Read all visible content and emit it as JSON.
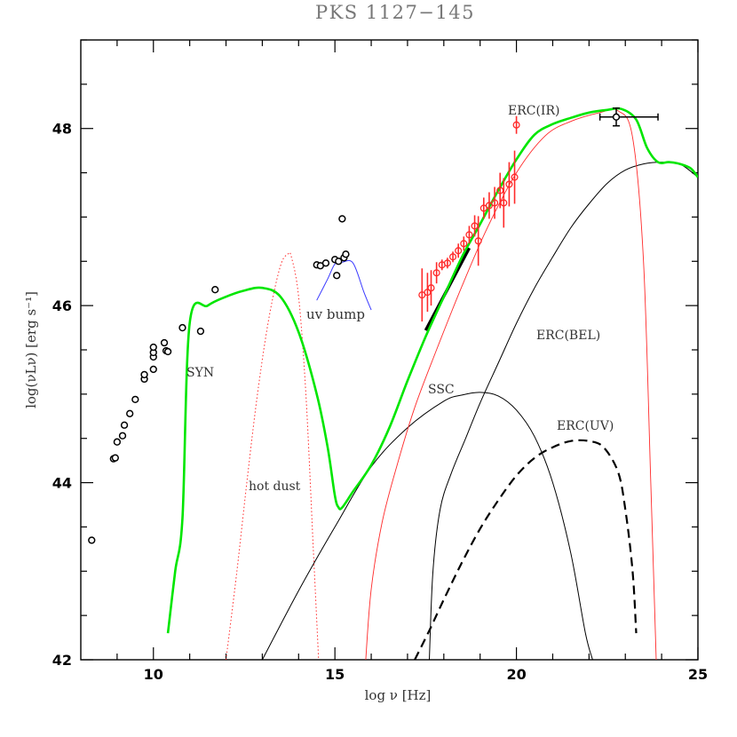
{
  "chart_data": {
    "type": "scatter",
    "title": "PKS 1127−145",
    "xlabel": "log ν [Hz]",
    "ylabel": "log(νLν) [erg s⁻¹]",
    "xlim": [
      8,
      25
    ],
    "ylim": [
      42,
      49
    ],
    "x_ticks": [
      10,
      15,
      20,
      25
    ],
    "y_ticks": [
      42,
      44,
      46,
      48
    ],
    "x_tick_labels": [
      "10",
      "15",
      "20",
      "25"
    ],
    "y_tick_labels": [
      "42",
      "44",
      "46",
      "48"
    ],
    "colors": {
      "green": "#00e600",
      "red": "#ff2a2a",
      "blue": "#3a3aff",
      "black": "#000000"
    },
    "annotations": {
      "syn": "SYN",
      "hot_dust": "hot dust",
      "uv_bump": "uv bump",
      "ssc": "SSC",
      "erc_bel": "ERC(BEL)",
      "erc_uv": "ERC(UV)",
      "erc_ir": "ERC(IR)"
    },
    "series": [
      {
        "name": "total",
        "color": "#00e600",
        "style": "solid",
        "x": [
          10.4,
          10.6,
          10.8,
          11.0,
          11.5,
          12.0,
          12.5,
          13.0,
          13.5,
          14.0,
          14.5,
          14.8,
          15.0,
          15.1,
          15.2,
          15.5,
          16.0,
          16.5,
          17.0,
          17.5,
          18.0,
          18.5,
          19.0,
          19.5,
          20.0,
          20.5,
          21.0,
          21.5,
          22.0,
          22.5,
          22.9,
          23.3,
          23.6,
          23.9,
          24.2,
          24.5,
          24.8,
          25.0
        ],
        "y": [
          42.3,
          43.0,
          43.6,
          45.8,
          46.0,
          46.1,
          46.17,
          46.2,
          46.1,
          45.7,
          45.0,
          44.4,
          43.85,
          43.72,
          43.72,
          43.9,
          44.2,
          44.62,
          45.15,
          45.65,
          46.1,
          46.55,
          46.92,
          47.3,
          47.65,
          47.93,
          48.05,
          48.12,
          48.18,
          48.21,
          48.22,
          48.1,
          47.78,
          47.62,
          47.62,
          47.6,
          47.55,
          47.45
        ]
      },
      {
        "name": "hot dust",
        "color": "#ff2a2a",
        "style": "dotted",
        "x": [
          12.0,
          12.3,
          12.6,
          12.9,
          13.2,
          13.5,
          13.7,
          13.8,
          14.0,
          14.2,
          14.4,
          14.55
        ],
        "y": [
          42.0,
          43.0,
          44.1,
          45.1,
          45.9,
          46.45,
          46.58,
          46.55,
          46.1,
          45.0,
          43.3,
          42.0
        ]
      },
      {
        "name": "uv bump",
        "color": "#3a3aff",
        "style": "solid",
        "x": [
          14.5,
          14.8,
          15.0,
          15.2,
          15.5,
          15.8,
          16.0
        ],
        "y": [
          46.06,
          46.3,
          46.47,
          46.49,
          46.48,
          46.15,
          45.95
        ]
      },
      {
        "name": "SSC",
        "color": "#000000",
        "style": "solid",
        "x": [
          13.0,
          14.0,
          15.0,
          16.0,
          17.0,
          18.0,
          18.5,
          19.0,
          19.5,
          20.0,
          20.5,
          21.0,
          21.5,
          21.9,
          22.1
        ],
        "y": [
          42.0,
          42.78,
          43.5,
          44.18,
          44.62,
          44.92,
          44.99,
          45.02,
          44.98,
          44.82,
          44.52,
          44.0,
          43.2,
          42.3,
          42.0
        ]
      },
      {
        "name": "ERC(BEL)",
        "color": "#000000",
        "style": "solid",
        "x": [
          17.6,
          17.7,
          17.9,
          18.2,
          18.6,
          19.0,
          19.5,
          20.0,
          20.5,
          21.0,
          21.5,
          22.0,
          22.5,
          23.0,
          23.5,
          24.0,
          24.5,
          25.0
        ],
        "y": [
          42.0,
          43.0,
          43.7,
          44.1,
          44.5,
          44.9,
          45.35,
          45.8,
          46.2,
          46.55,
          46.88,
          47.15,
          47.38,
          47.53,
          47.6,
          47.62,
          47.6,
          47.45
        ]
      },
      {
        "name": "ERC(UV)",
        "color": "#000000",
        "style": "dashed",
        "x": [
          17.2,
          17.6,
          18.0,
          18.5,
          19.0,
          19.5,
          20.0,
          20.5,
          21.0,
          21.5,
          22.0,
          22.4,
          22.8,
          23.0,
          23.2,
          23.3
        ],
        "y": [
          42.0,
          42.33,
          42.68,
          43.1,
          43.48,
          43.8,
          44.08,
          44.28,
          44.4,
          44.47,
          44.47,
          44.4,
          44.12,
          43.7,
          43.0,
          42.3
        ]
      },
      {
        "name": "ERC(IR)",
        "color": "#ff2a2a",
        "style": "solid",
        "x": [
          15.85,
          16.0,
          16.3,
          16.7,
          17.2,
          17.8,
          18.5,
          19.2,
          20.0,
          20.8,
          21.5,
          22.3,
          22.8,
          23.2,
          23.5,
          23.7,
          23.85
        ],
        "y": [
          42.0,
          42.8,
          43.55,
          44.18,
          44.85,
          45.5,
          46.22,
          46.88,
          47.5,
          47.92,
          48.08,
          48.18,
          48.2,
          47.9,
          46.5,
          44.0,
          42.0
        ]
      },
      {
        "name": "X-ray bowtie",
        "color": "#000000",
        "style": "thick",
        "x": [
          17.5,
          18.7
        ],
        "y": [
          45.72,
          46.65
        ]
      }
    ],
    "points_black": [
      {
        "x": 8.3,
        "y": 43.35
      },
      {
        "x": 8.9,
        "y": 44.27
      },
      {
        "x": 8.95,
        "y": 44.28
      },
      {
        "x": 9.0,
        "y": 44.46
      },
      {
        "x": 9.15,
        "y": 44.53
      },
      {
        "x": 9.2,
        "y": 44.65
      },
      {
        "x": 9.35,
        "y": 44.78
      },
      {
        "x": 9.5,
        "y": 44.94
      },
      {
        "x": 9.75,
        "y": 45.17
      },
      {
        "x": 9.75,
        "y": 45.22
      },
      {
        "x": 10.0,
        "y": 45.28
      },
      {
        "x": 10.0,
        "y": 45.42
      },
      {
        "x": 10.0,
        "y": 45.47
      },
      {
        "x": 10.0,
        "y": 45.53
      },
      {
        "x": 10.3,
        "y": 45.58
      },
      {
        "x": 10.35,
        "y": 45.49
      },
      {
        "x": 10.4,
        "y": 45.48
      },
      {
        "x": 10.8,
        "y": 45.75
      },
      {
        "x": 11.3,
        "y": 45.71
      },
      {
        "x": 11.7,
        "y": 46.18
      },
      {
        "x": 14.5,
        "y": 46.46
      },
      {
        "x": 14.6,
        "y": 46.45
      },
      {
        "x": 14.75,
        "y": 46.48
      },
      {
        "x": 15.0,
        "y": 46.52
      },
      {
        "x": 15.05,
        "y": 46.34
      },
      {
        "x": 15.1,
        "y": 46.5
      },
      {
        "x": 15.25,
        "y": 46.54
      },
      {
        "x": 15.3,
        "y": 46.58
      },
      {
        "x": 15.2,
        "y": 46.98
      }
    ],
    "points_red": [
      {
        "x": 17.4,
        "y": 46.12,
        "yerr": 0.3
      },
      {
        "x": 17.55,
        "y": 46.15,
        "yerr": 0.22
      },
      {
        "x": 17.65,
        "y": 46.2,
        "yerr": 0.2
      },
      {
        "x": 17.8,
        "y": 46.37,
        "yerr": 0.12
      },
      {
        "x": 17.95,
        "y": 46.46,
        "yerr": 0.06
      },
      {
        "x": 18.1,
        "y": 46.48,
        "yerr": 0.06
      },
      {
        "x": 18.25,
        "y": 46.55,
        "yerr": 0.06
      },
      {
        "x": 18.4,
        "y": 46.62,
        "yerr": 0.08
      },
      {
        "x": 18.55,
        "y": 46.7,
        "yerr": 0.08
      },
      {
        "x": 18.7,
        "y": 46.8,
        "yerr": 0.1
      },
      {
        "x": 18.85,
        "y": 46.9,
        "yerr": 0.12
      },
      {
        "x": 18.95,
        "y": 46.73,
        "yerr": 0.28
      },
      {
        "x": 19.1,
        "y": 47.1,
        "yerr": 0.12
      },
      {
        "x": 19.25,
        "y": 47.13,
        "yerr": 0.15
      },
      {
        "x": 19.4,
        "y": 47.16,
        "yerr": 0.18
      },
      {
        "x": 19.55,
        "y": 47.3,
        "yerr": 0.2
      },
      {
        "x": 19.65,
        "y": 47.16,
        "yerr": 0.28
      },
      {
        "x": 19.8,
        "y": 47.37,
        "yerr": 0.25
      },
      {
        "x": 19.95,
        "y": 47.45,
        "yerr": 0.3
      },
      {
        "x": 20.0,
        "y": 48.04,
        "yerr": 0.1
      }
    ],
    "point_gamma": {
      "x": 22.75,
      "y": 48.13,
      "xmin": 22.3,
      "xmax": 23.9,
      "yerr": 0.1
    }
  }
}
